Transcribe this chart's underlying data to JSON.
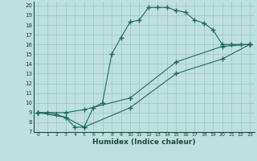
{
  "xlabel": "Humidex (Indice chaleur)",
  "bg_color": "#c0e0e0",
  "grid_color": "#a0c8c8",
  "line_color": "#1a6a5a",
  "xlim": [
    -0.5,
    23.5
  ],
  "ylim": [
    7,
    20.4
  ],
  "xticks": [
    0,
    1,
    2,
    3,
    4,
    5,
    6,
    7,
    8,
    9,
    10,
    11,
    12,
    13,
    14,
    15,
    16,
    17,
    18,
    19,
    20,
    21,
    22,
    23
  ],
  "yticks": [
    7,
    8,
    9,
    10,
    11,
    12,
    13,
    14,
    15,
    16,
    17,
    18,
    19,
    20
  ],
  "line1_x": [
    0,
    1,
    2,
    3,
    4,
    5,
    6,
    7,
    8,
    9,
    10,
    11,
    12,
    13,
    14,
    15,
    16,
    17,
    18,
    19,
    20,
    21,
    22,
    23
  ],
  "line1_y": [
    9,
    9,
    8.8,
    8.5,
    7.5,
    7.5,
    9.5,
    10.0,
    15.0,
    16.7,
    18.3,
    18.5,
    19.8,
    19.8,
    19.8,
    19.5,
    19.3,
    18.5,
    18.2,
    17.5,
    16.0,
    16.0,
    16.0,
    16.0
  ],
  "line2_x": [
    0,
    3,
    5,
    10,
    15,
    20,
    23
  ],
  "line2_y": [
    9,
    9,
    9.3,
    10.5,
    14.2,
    15.8,
    16.0
  ],
  "line3_x": [
    0,
    3,
    5,
    10,
    15,
    20,
    23
  ],
  "line3_y": [
    9,
    8.5,
    7.5,
    9.5,
    13.0,
    14.5,
    16.0
  ]
}
